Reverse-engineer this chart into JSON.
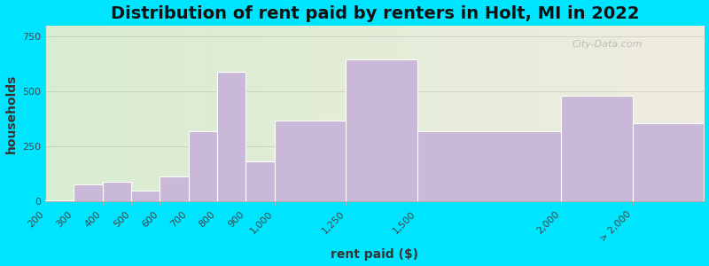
{
  "title": "Distribution of rent paid by renters in Holt, MI in 2022",
  "xlabel": "rent paid ($)",
  "ylabel": "households",
  "bar_left_edges": [
    200,
    300,
    400,
    500,
    600,
    700,
    800,
    900,
    1000,
    1250,
    1500,
    2000,
    2250
  ],
  "bar_widths": [
    100,
    100,
    100,
    100,
    100,
    100,
    100,
    100,
    250,
    250,
    500,
    250,
    250
  ],
  "values": [
    5,
    80,
    90,
    50,
    115,
    320,
    590,
    185,
    370,
    645,
    320,
    480,
    355
  ],
  "tick_positions": [
    200,
    300,
    400,
    500,
    600,
    700,
    800,
    900,
    1000,
    1250,
    1500,
    2000,
    2250
  ],
  "tick_labels": [
    "200",
    "300",
    "400",
    "500",
    "600",
    "700",
    "800",
    "900",
    "1,000",
    "1,250",
    "1,500",
    "2,000",
    "> 2,000"
  ],
  "bar_color": "#c9b8d8",
  "bar_edge_color": "#ffffff",
  "background_outer": "#00e5ff",
  "background_inner_left": "#d8ecd0",
  "background_inner_right": "#f0ece0",
  "title_fontsize": 14,
  "axis_label_fontsize": 10,
  "tick_fontsize": 8,
  "yticks": [
    0,
    250,
    500,
    750
  ],
  "ylim": [
    0,
    800
  ],
  "xlim": [
    200,
    2500
  ],
  "watermark_text": "City-Data.com"
}
